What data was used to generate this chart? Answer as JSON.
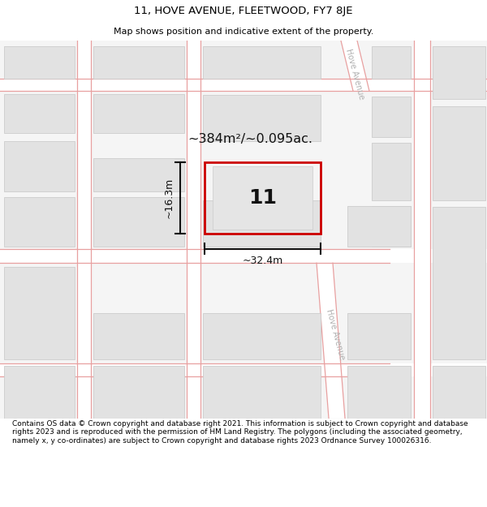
{
  "title": "11, HOVE AVENUE, FLEETWOOD, FY7 8JE",
  "subtitle": "Map shows position and indicative extent of the property.",
  "footer": "Contains OS data © Crown copyright and database right 2021. This information is subject to Crown copyright and database rights 2023 and is reproduced with the permission of HM Land Registry. The polygons (including the associated geometry, namely x, y co-ordinates) are subject to Crown copyright and database rights 2023 Ordnance Survey 100026316.",
  "bg_color": "#ffffff",
  "map_bg": "#f8f8f8",
  "block_color": "#e2e2e2",
  "block_edge": "#cccccc",
  "road_line_color": "#e8a0a0",
  "property_edge": "#cc0000",
  "property_fill": "#ffffff",
  "dimension_color": "#111111",
  "area_text": "~384m²/~0.095ac.",
  "property_label": "11",
  "width_label": "~32.4m",
  "height_label": "~16.3m",
  "street_label_upper": "Hove Avenue",
  "street_label_lower": "Hove Avenue",
  "title_fontsize": 9.5,
  "subtitle_fontsize": 8,
  "footer_fontsize": 6.5
}
